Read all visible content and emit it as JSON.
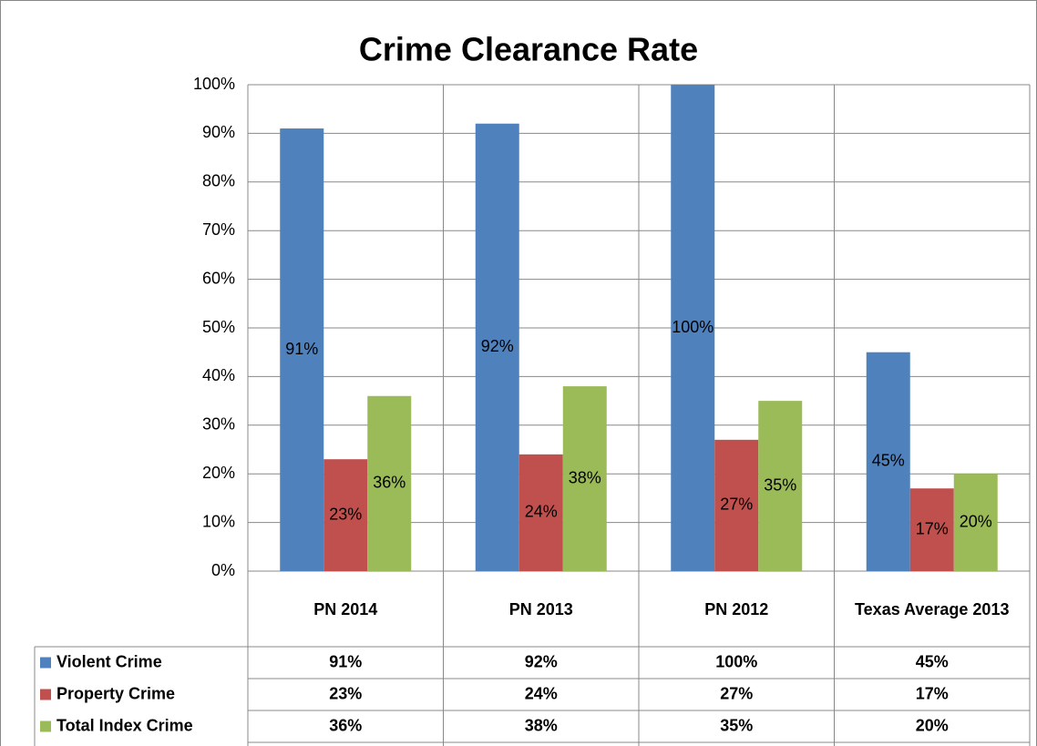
{
  "chart_data": {
    "type": "bar",
    "title": "Crime Clearance Rate",
    "categories": [
      "PN 2014",
      "PN 2013",
      "PN 2012",
      "Texas Average 2013"
    ],
    "series": [
      {
        "name": "Violent Crime",
        "color": "#4f81bd",
        "values": [
          91,
          92,
          100,
          45
        ],
        "value_labels": [
          "91%",
          "92%",
          "100%",
          "45%"
        ]
      },
      {
        "name": "Property Crime",
        "color": "#c0504d",
        "values": [
          23,
          24,
          27,
          17
        ],
        "value_labels": [
          "23%",
          "24%",
          "27%",
          "17%"
        ]
      },
      {
        "name": "Total Index Crime",
        "color": "#9bbb59",
        "values": [
          36,
          38,
          35,
          20
        ],
        "value_labels": [
          "36%",
          "38%",
          "35%",
          "20%"
        ]
      }
    ],
    "ylim": [
      0,
      100
    ],
    "yticks": [
      {
        "value": 0,
        "label": "0%"
      },
      {
        "value": 10,
        "label": "10%"
      },
      {
        "value": 20,
        "label": "20%"
      },
      {
        "value": 30,
        "label": "30%"
      },
      {
        "value": 40,
        "label": "40%"
      },
      {
        "value": 50,
        "label": "50%"
      },
      {
        "value": 60,
        "label": "60%"
      },
      {
        "value": 70,
        "label": "70%"
      },
      {
        "value": 80,
        "label": "80%"
      },
      {
        "value": 90,
        "label": "90%"
      },
      {
        "value": 100,
        "label": "100%"
      }
    ],
    "grid": true
  }
}
